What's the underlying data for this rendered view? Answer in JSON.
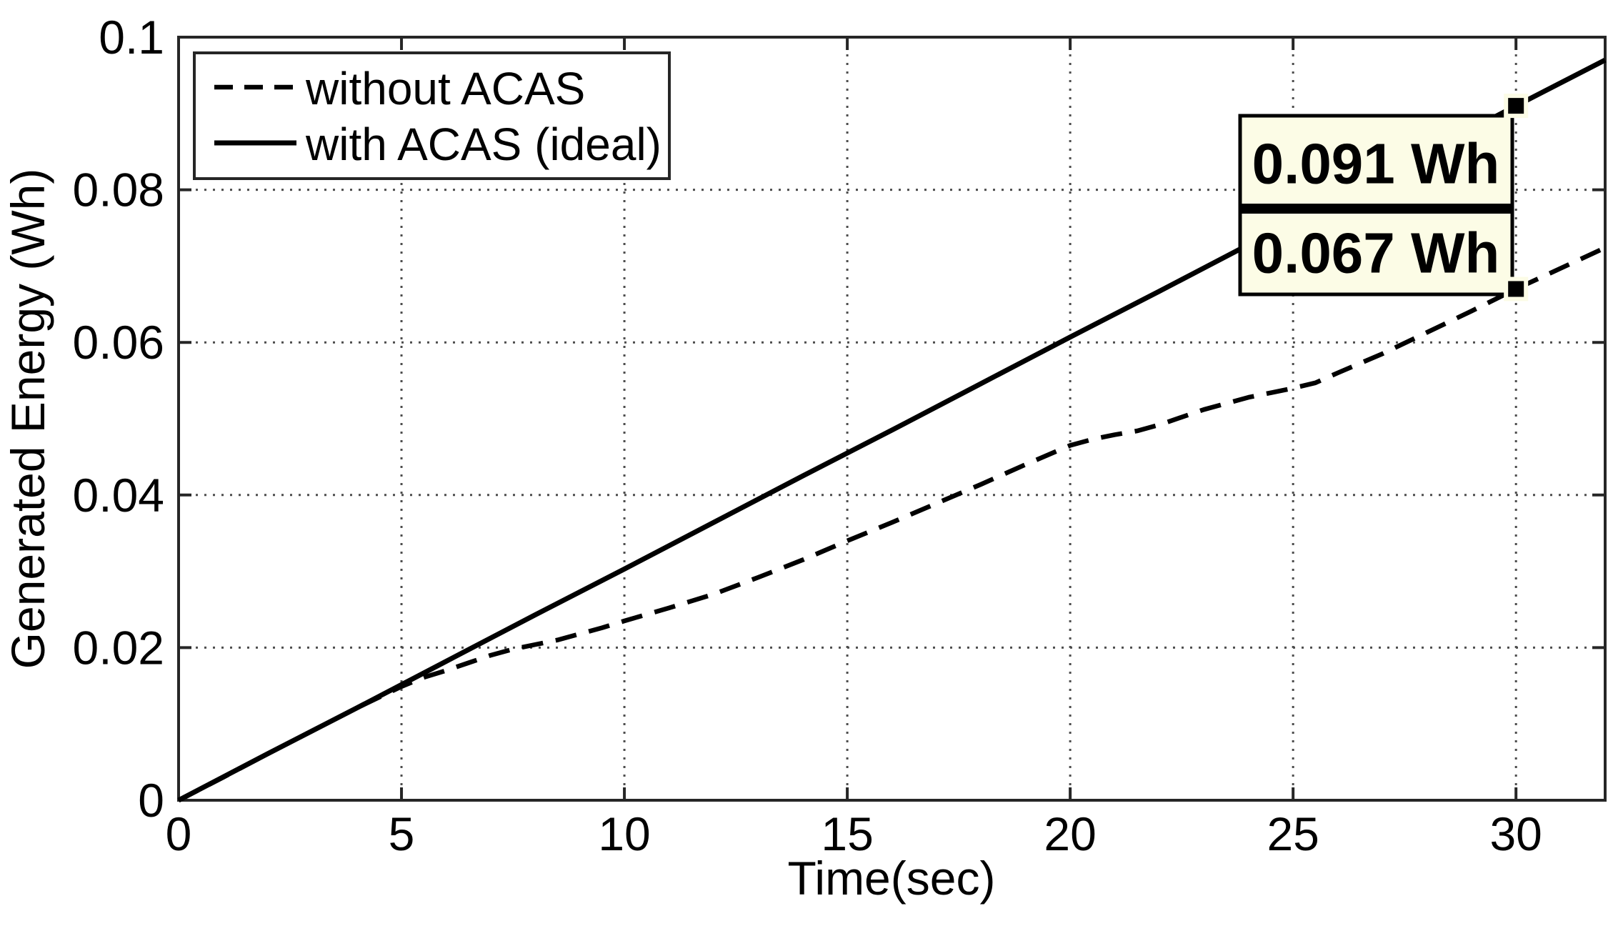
{
  "figure": {
    "background": "#ffffff",
    "axis_color": "#262626",
    "grid_color": "#4d4d4d",
    "curve_color": "#000000",
    "datatip_bg": "#fcfce6",
    "datatip_border": "#000000"
  },
  "chart_data": {
    "type": "line",
    "title": "",
    "xlabel": "Time(sec)",
    "ylabel": "Generated Energy (Wh)",
    "xlim": [
      0,
      32
    ],
    "ylim": [
      0,
      0.1
    ],
    "grid": true,
    "legend_position": "top-left",
    "x_ticks": [
      0,
      5,
      10,
      15,
      20,
      25,
      30
    ],
    "x_tick_labels": [
      "0",
      "5",
      "10",
      "15",
      "20",
      "25",
      "30"
    ],
    "y_ticks": [
      0,
      0.02,
      0.04,
      0.06,
      0.08,
      0.1
    ],
    "y_tick_labels": [
      "0",
      "0.02",
      "0.04",
      "0.06",
      "0.08",
      "0.1"
    ],
    "series": [
      {
        "name": "with ACAS (ideal)",
        "style": "solid",
        "x": [
          0,
          2,
          4,
          6,
          8,
          10,
          12,
          14,
          16,
          18,
          20,
          22,
          24,
          26,
          28,
          30,
          32
        ],
        "y": [
          0,
          0.0061,
          0.0121,
          0.0182,
          0.0243,
          0.0303,
          0.0364,
          0.0425,
          0.0485,
          0.0546,
          0.0607,
          0.0667,
          0.0728,
          0.0789,
          0.0849,
          0.091,
          0.097
        ]
      },
      {
        "name": "without ACAS",
        "style": "dashed",
        "x": [
          0,
          1,
          2,
          3,
          4,
          5,
          5.5,
          6,
          6.5,
          7,
          7.5,
          8,
          8.5,
          9,
          9.5,
          10,
          11,
          12,
          13,
          14,
          15,
          16,
          17,
          18,
          19,
          20,
          20.5,
          21,
          21.5,
          22,
          23,
          24,
          25,
          25.5,
          26,
          27,
          28,
          29,
          30,
          31,
          32
        ],
        "y": [
          0,
          0.003,
          0.0061,
          0.0091,
          0.0121,
          0.0149,
          0.0161,
          0.017,
          0.018,
          0.019,
          0.0198,
          0.0204,
          0.021,
          0.0218,
          0.0226,
          0.0235,
          0.0252,
          0.027,
          0.0292,
          0.0315,
          0.034,
          0.0364,
          0.0389,
          0.0414,
          0.044,
          0.0465,
          0.0473,
          0.0479,
          0.0484,
          0.0492,
          0.0512,
          0.0528,
          0.054,
          0.0547,
          0.056,
          0.0585,
          0.0613,
          0.0641,
          0.067,
          0.0697,
          0.0724
        ]
      }
    ],
    "annotations": [
      {
        "label": "0.091 Wh",
        "series": "with ACAS (ideal)",
        "point": {
          "x": 30,
          "y": 0.091
        }
      },
      {
        "label": "0.067 Wh",
        "series": "without ACAS",
        "point": {
          "x": 30,
          "y": 0.067
        }
      }
    ]
  },
  "legend": {
    "items": [
      {
        "label": "without ACAS",
        "line_style": "dashed"
      },
      {
        "label": "with ACAS (ideal)",
        "line_style": "solid"
      }
    ]
  },
  "datatips": {
    "top_value": "0.091 Wh",
    "bottom_value": "0.067 Wh"
  }
}
